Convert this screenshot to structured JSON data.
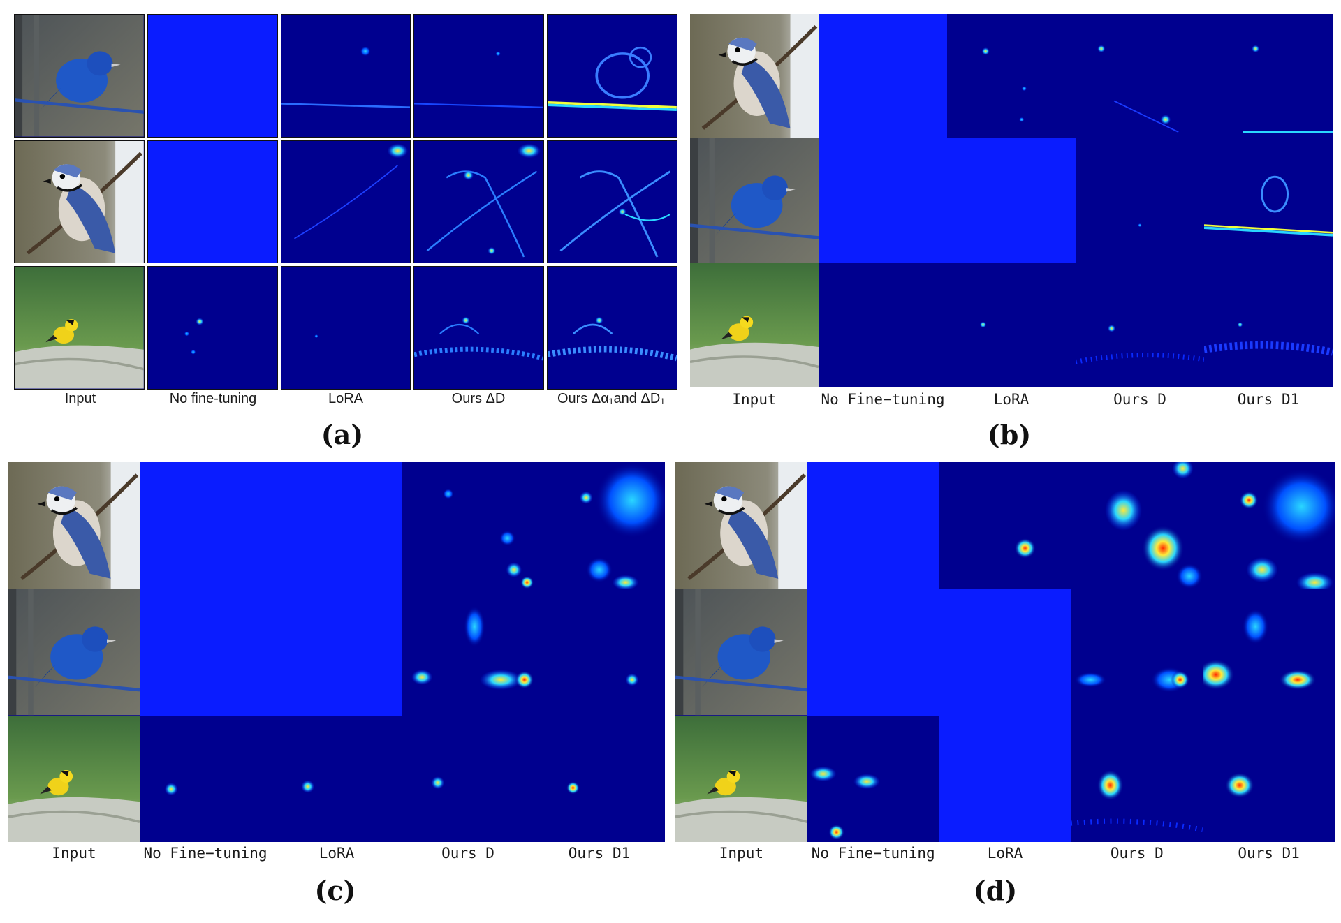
{
  "figure": {
    "panels": [
      {
        "id": "a",
        "caption": "(a)",
        "columns": [
          "Input",
          "No fine-tuning",
          "LoRA",
          "Ours ΔD",
          "Ours Δα₁and ΔD₁"
        ],
        "rows": [
          "blue-bunting",
          "blue-jay",
          "goldfinch"
        ]
      },
      {
        "id": "b",
        "caption": "(b)",
        "columns": [
          "Input",
          "No Fine−tuning",
          "LoRA",
          "Ours D",
          "Ours D1"
        ],
        "rows": [
          "blue-jay",
          "blue-bunting",
          "goldfinch"
        ]
      },
      {
        "id": "c",
        "caption": "(c)",
        "columns": [
          "Input",
          "No Fine−tuning",
          "LoRA",
          "Ours D",
          "Ours D1"
        ],
        "rows": [
          "blue-jay",
          "blue-bunting",
          "goldfinch"
        ]
      },
      {
        "id": "d",
        "caption": "(d)",
        "columns": [
          "Input",
          "No Fine−tuning",
          "LoRA",
          "Ours D",
          "Ours D1"
        ],
        "rows": [
          "blue-jay",
          "blue-bunting",
          "goldfinch"
        ]
      }
    ]
  },
  "colors": {
    "heatmap_low": "#00008f",
    "saturated_blue": "#0a1cff",
    "heat_cyan": "#22d4ff",
    "heat_yellow": "#f2ff3a",
    "heat_red": "#ff2a00"
  }
}
